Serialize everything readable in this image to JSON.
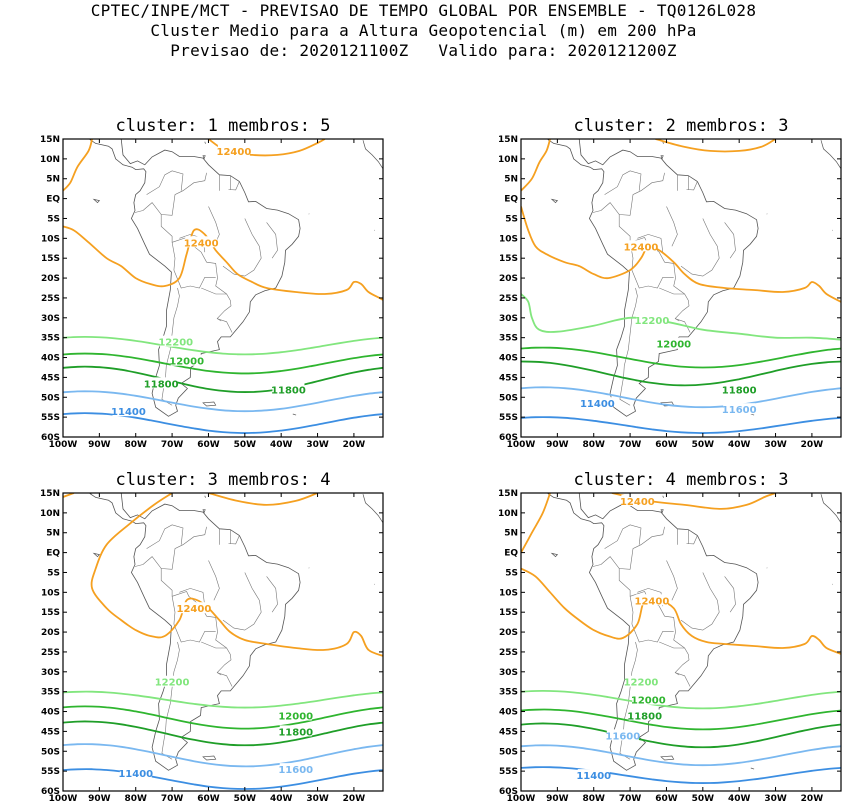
{
  "header": {
    "line1": "CPTEC/INPE/MCT - PREVISAO DE TEMPO GLOBAL POR ENSEMBLE - TQ0126L028",
    "line2": "Cluster Medio para a Altura Geopotencial (m) em 200 hPa",
    "line3": "Previsao de: 2020121100Z   Valido para: 2020121200Z"
  },
  "axes": {
    "lat_labels": [
      "15N",
      "10N",
      "5N",
      "EQ",
      "5S",
      "10S",
      "15S",
      "20S",
      "25S",
      "30S",
      "35S",
      "40S",
      "45S",
      "50S",
      "55S",
      "60S"
    ],
    "lon_labels": [
      "100W",
      "90W",
      "80W",
      "70W",
      "60W",
      "50W",
      "40W",
      "30W",
      "20W"
    ]
  },
  "colors": {
    "c12400": "#f5a020",
    "c12200": "#82e67e",
    "c12000": "#2fb52f",
    "c11800": "#1f9e28",
    "c11600": "#7ab8f0",
    "c11400": "#3c8ee2"
  },
  "panels": [
    {
      "title": "cluster: 1   membros: 5"
    },
    {
      "title": "cluster: 2   membros: 3"
    },
    {
      "title": "cluster: 3   membros: 4"
    },
    {
      "title": "cluster: 4   membros: 3"
    }
  ],
  "contours": [
    {
      "value": 12400,
      "label": "12400",
      "color_key": "c12400"
    },
    {
      "value": 12200,
      "label": "12200",
      "color_key": "c12200"
    },
    {
      "value": 12000,
      "label": "12000",
      "color_key": "c12000"
    },
    {
      "value": 11800,
      "label": "11800",
      "color_key": "c11800"
    },
    {
      "value": 11600,
      "label": "11600",
      "color_key": "c11600"
    },
    {
      "value": 11400,
      "label": "11400",
      "color_key": "c11400"
    }
  ]
}
